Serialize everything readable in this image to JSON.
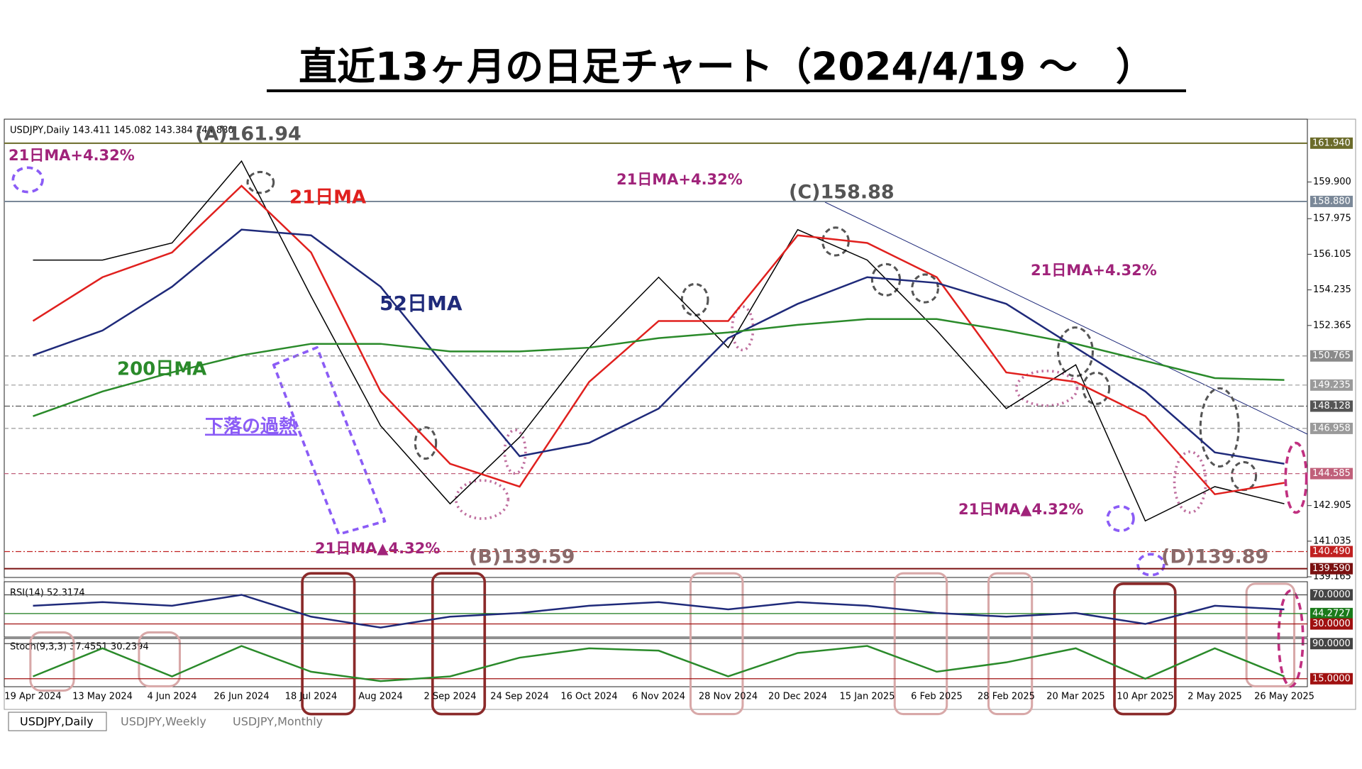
{
  "title": "直近13ヶ月の日足チャート（2024/4/19 ～　）",
  "chart_data": [
    {
      "type": "line",
      "header": "USDJPY,Daily  143.411 145.082 143.384 144.880",
      "categories": [
        "19 Apr 2024",
        "13 May 2024",
        "4 Jun 2024",
        "26 Jun 2024",
        "18 Jul 2024",
        "Aug 2024",
        "2 Sep 2024",
        "24 Sep 2024",
        "16 Oct 2024",
        "6 Nov 2024",
        "28 Nov 2024",
        "20 Dec 2024",
        "15 Jan 2025",
        "6 Feb 2025",
        "28 Feb 2025",
        "20 Mar 2025",
        "10 Apr 2025",
        "2 May 2025",
        "26 May 2025"
      ],
      "series": [
        {
          "color": "#000000",
          "values": [
            155.8,
            155.8,
            156.7,
            161.0,
            153.9,
            147.1,
            143.0,
            146.5,
            151.2,
            154.9,
            151.2,
            157.4,
            155.8,
            152.1,
            148.0,
            150.3,
            142.1,
            143.9,
            143.0
          ]
        },
        {
          "name": "21日MA",
          "color": "#e0201e",
          "values": [
            152.6,
            154.9,
            156.2,
            159.7,
            156.2,
            148.9,
            145.1,
            143.9,
            149.4,
            152.6,
            152.6,
            157.1,
            156.7,
            154.9,
            149.9,
            149.4,
            147.6,
            143.5,
            144.1
          ]
        },
        {
          "name": "52日MA",
          "color": "#1f2a7a",
          "values": [
            150.8,
            152.1,
            154.4,
            157.4,
            157.1,
            154.4,
            149.9,
            145.5,
            146.2,
            148.0,
            151.7,
            153.5,
            154.9,
            154.6,
            153.5,
            151.2,
            148.9,
            145.7,
            145.1
          ]
        },
        {
          "name": "200日MA",
          "color": "#2a8a2a",
          "values": [
            147.6,
            148.9,
            149.9,
            150.8,
            151.4,
            151.4,
            151.0,
            151.0,
            151.2,
            151.7,
            152.0,
            152.4,
            152.7,
            152.7,
            152.1,
            151.4,
            150.5,
            149.6,
            149.5
          ]
        }
      ],
      "ylim": [
        139.13,
        163.2
      ],
      "yticks": [
        {
          "value": 159.9,
          "label": "159.900"
        },
        157.975,
        156.105,
        154.235,
        152.365,
        142.905,
        141.035,
        139.165
      ],
      "levels": [
        {
          "value": 161.94,
          "label": "161.940",
          "color": "#6b6b2a",
          "style": "solid"
        },
        {
          "value": 158.88,
          "label": "158.880",
          "color": "#7a8898",
          "style": "solid"
        },
        {
          "value": 150.765,
          "label": "150.765",
          "color": "#8a8a8a",
          "style": "dashed"
        },
        {
          "value": 149.235,
          "label": "149.235",
          "color": "#9a9a9a",
          "style": "dashed"
        },
        {
          "value": 148.128,
          "label": "148.128",
          "color": "#555555",
          "style": "dashdot"
        },
        {
          "value": 146.958,
          "label": "146.958",
          "color": "#9a9a9a",
          "style": "dashed"
        },
        {
          "value": 144.585,
          "label": "144.585",
          "color": "#c0607a",
          "style": "dashed"
        },
        {
          "value": 140.49,
          "label": "140.490",
          "color": "#c02020",
          "style": "dashdot"
        },
        {
          "value": 139.59,
          "label": "139.590",
          "color": "#7a1010",
          "style": "solid"
        }
      ],
      "annotations": [
        "(A)161.94",
        "21日MA+4.32%",
        "21日MA+4.32%",
        "(C)158.88",
        "21日MA+4.32%",
        "下落の過熱",
        "21日MA▲4.32%",
        "(B)139.59",
        "21日MA▲4.32%",
        "(D)139.89"
      ]
    },
    {
      "type": "line",
      "title": "RSI(14) 52.3174",
      "color": "#1f2a7a",
      "values": [
        55,
        60,
        55,
        70,
        40,
        25,
        40,
        45,
        55,
        60,
        50,
        60,
        55,
        45,
        40,
        45,
        30,
        55,
        50
      ],
      "ylim": [
        12,
        88
      ],
      "levels": [
        {
          "value": 70,
          "label": "70.0000",
          "color": "#444444"
        },
        {
          "value": 44.2727,
          "label": "44.2727",
          "color": "#1a7a1a"
        },
        {
          "value": 30,
          "label": "30.0000",
          "color": "#a01010"
        }
      ]
    },
    {
      "type": "line",
      "title": "Stoch(9,3,3) 37.4551 30.2394",
      "color": "#2a8a2a",
      "values": [
        20,
        80,
        20,
        85,
        30,
        10,
        20,
        60,
        80,
        75,
        20,
        70,
        85,
        30,
        50,
        80,
        15,
        80,
        20
      ],
      "ylim": [
        -2,
        101
      ],
      "levels": [
        {
          "value": 90,
          "label": "90.0000",
          "color": "#444444"
        },
        {
          "value": 15,
          "label": "15.0000",
          "color": "#a01010"
        }
      ]
    }
  ],
  "tabs": [
    "USDJPY,Daily",
    "USDJPY,Weekly",
    "USDJPY,Monthly"
  ]
}
